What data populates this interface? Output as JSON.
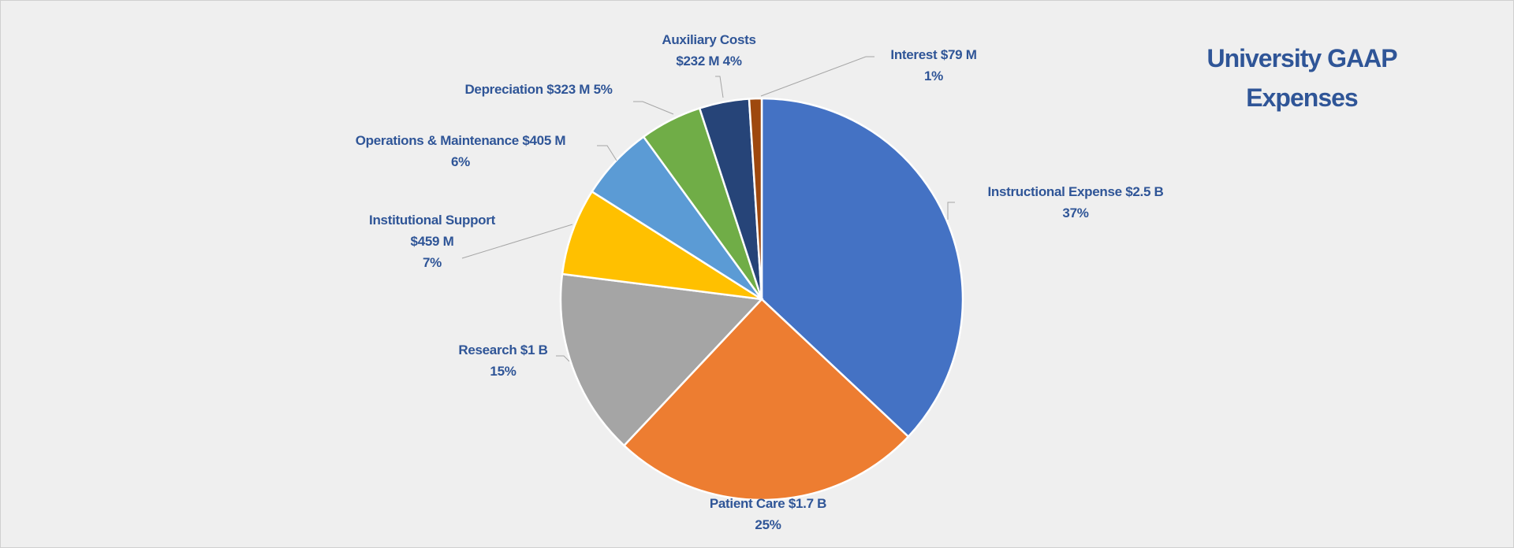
{
  "chart_data": {
    "type": "pie",
    "title": "University GAAP Expenses",
    "start_angle": "12 o'clock",
    "direction": "clockwise",
    "legend": "none",
    "slices": [
      {
        "name": "Instructional Expense",
        "amount": "$2.5 B",
        "percent": 37,
        "color": "#4472c4",
        "label_lines": [
          "Instructional Expense $2.5 B",
          "37%"
        ]
      },
      {
        "name": "Patient Care",
        "amount": "$1.7 B",
        "percent": 25,
        "color": "#ed7d31",
        "label_lines": [
          "Patient Care $1.7 B",
          "25%"
        ]
      },
      {
        "name": "Research",
        "amount": "$1 B",
        "percent": 15,
        "color": "#a5a5a5",
        "label_lines": [
          "Research $1 B",
          "15%"
        ]
      },
      {
        "name": "Institutional Support",
        "amount": "$459 M",
        "percent": 7,
        "color": "#ffc000",
        "label_lines": [
          "Institutional Support",
          "$459 M",
          "7%"
        ]
      },
      {
        "name": "Operations & Maintenance",
        "amount": "$405 M",
        "percent": 6,
        "color": "#5b9bd5",
        "label_lines": [
          "Operations & Maintenance  $405 M",
          "6%"
        ]
      },
      {
        "name": "Depreciation",
        "amount": "$323 M",
        "percent": 5,
        "color": "#70ad47",
        "label_lines": [
          "Depreciation  $323 M 5%"
        ]
      },
      {
        "name": "Auxiliary Costs",
        "amount": "$232 M",
        "percent": 4,
        "color": "#264478",
        "label_lines": [
          "Auxiliary Costs",
          "$232 M 4%"
        ]
      },
      {
        "name": "Interest",
        "amount": "$79 M",
        "percent": 1,
        "color": "#9e480e",
        "label_lines": [
          "Interest  $79 M",
          "1%"
        ]
      }
    ]
  }
}
